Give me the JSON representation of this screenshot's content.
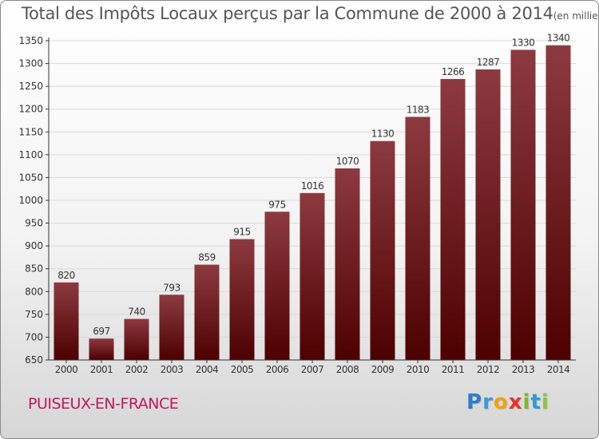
{
  "header": {
    "title": "Total des Impôts Locaux perçus par la Commune de 2000 à 2014",
    "unit": "(en milliers d'€)"
  },
  "footer": {
    "commune": "PUISEUX-EN-FRANCE",
    "logo_letters": [
      "P",
      "r",
      "o",
      "x",
      "i",
      "t",
      "i"
    ],
    "logo_colors": [
      "#2e7ec9",
      "#3b9ad9",
      "#f2a20c",
      "#e8322a",
      "#7cb928",
      "#2e9bd6",
      "#8cc63f"
    ]
  },
  "colors": {
    "bar_top": "#8c3a40",
    "bar_bottom": "#4d0000",
    "axis": "#333333",
    "grid": "#d9d9d9",
    "label": "#333333"
  },
  "chart_data": {
    "type": "bar",
    "title": "Total des Impôts Locaux perçus par la Commune de 2000 à 2014",
    "xlabel": "",
    "ylabel": "",
    "categories": [
      "2000",
      "2001",
      "2002",
      "2003",
      "2004",
      "2005",
      "2006",
      "2007",
      "2008",
      "2009",
      "2010",
      "2011",
      "2012",
      "2013",
      "2014"
    ],
    "values": [
      820,
      697,
      740,
      793,
      859,
      915,
      975,
      1016,
      1070,
      1130,
      1183,
      1266,
      1287,
      1330,
      1340
    ],
    "ylim": [
      650,
      1350
    ],
    "yticks": [
      650,
      700,
      750,
      800,
      850,
      900,
      950,
      1000,
      1050,
      1100,
      1150,
      1200,
      1250,
      1300,
      1350
    ],
    "grid": true
  }
}
